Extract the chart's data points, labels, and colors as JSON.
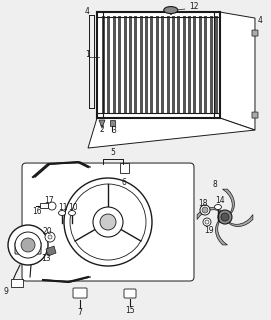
{
  "background_color": "#efefef",
  "fig_width": 2.71,
  "fig_height": 3.2,
  "dpi": 100,
  "line_color": "#1a1a1a",
  "label_fontsize": 5.5
}
